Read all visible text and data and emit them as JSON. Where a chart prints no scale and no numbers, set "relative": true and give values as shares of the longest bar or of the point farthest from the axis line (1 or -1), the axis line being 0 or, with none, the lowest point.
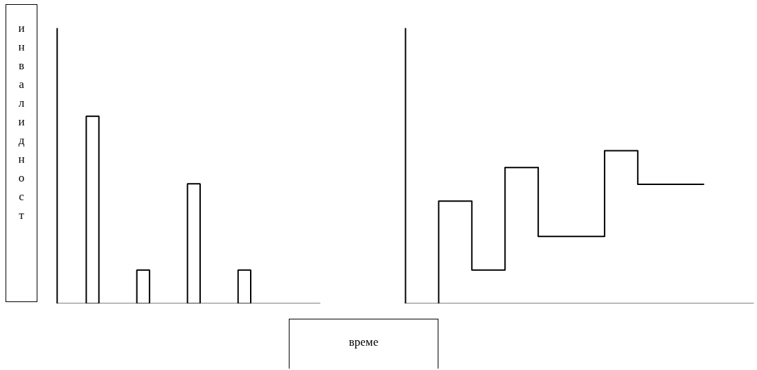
{
  "chart_data": [
    {
      "type": "bar",
      "relative": true,
      "ylabel": "инвалидност",
      "categories": [
        null,
        null,
        null,
        null
      ],
      "values": [
        1,
        0.18,
        0.64,
        0.18
      ],
      "color": "#ffffff"
    },
    {
      "type": "step",
      "relative": true,
      "xlabel": "време",
      "categories": [
        null,
        null,
        null,
        null,
        null,
        null,
        null,
        null,
        null
      ],
      "series": [
        {
          "color": "#000000",
          "values": [
            0,
            0.67,
            0.22,
            0.89,
            0.44,
            0.44,
            1,
            0.78,
            0.78
          ]
        }
      ]
    }
  ]
}
